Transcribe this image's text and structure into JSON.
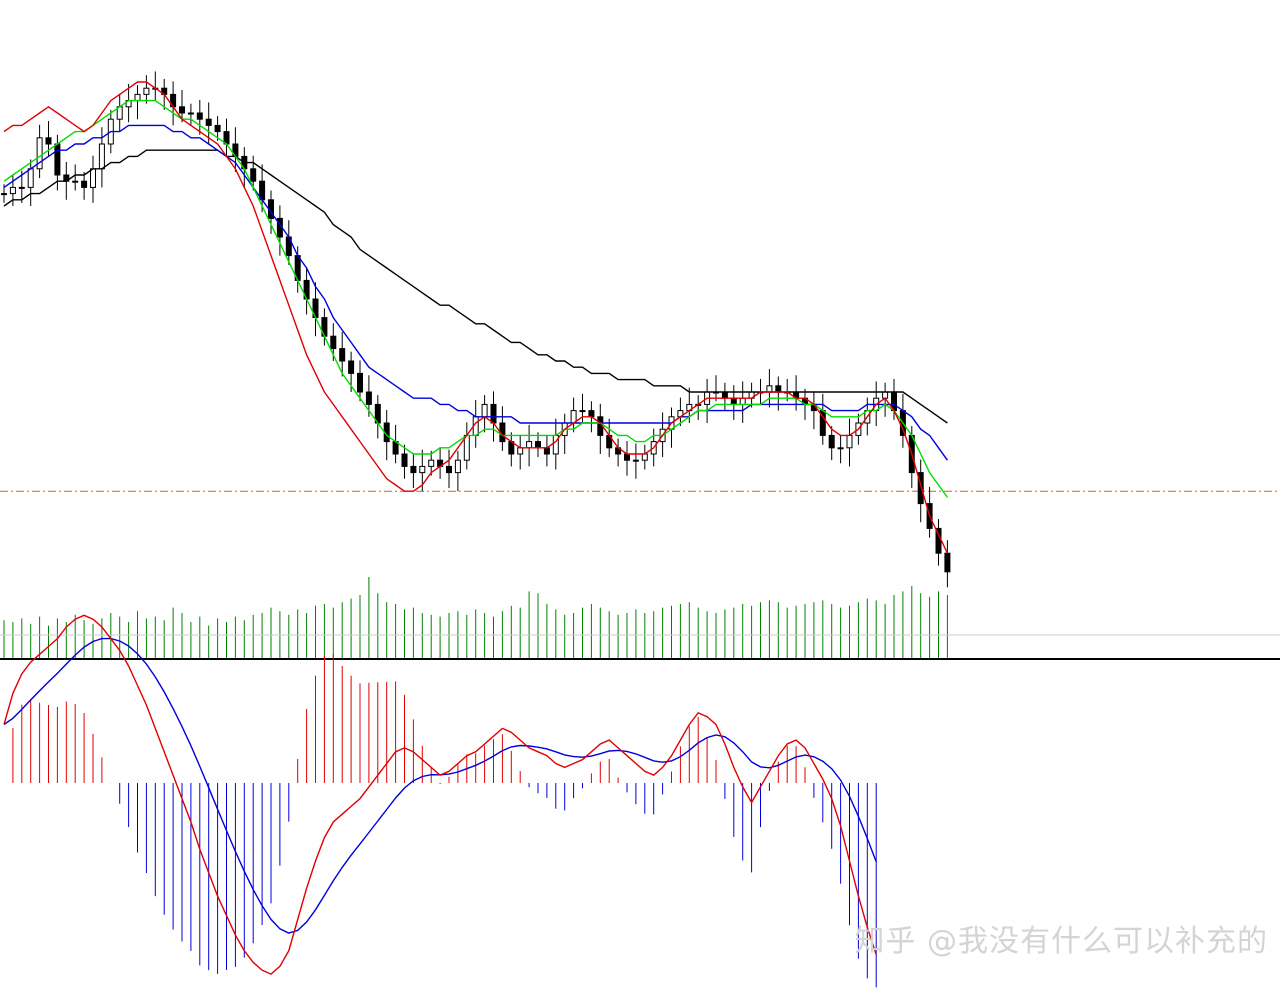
{
  "watermark": {
    "text": "知乎 @我没有什么可以补充的"
  },
  "colors": {
    "background": "#ffffff",
    "ma_fast": "#e00000",
    "ma_mid": "#00dd00",
    "ma_slow": "#0000dd",
    "ma_long": "#000000",
    "volume": "#008000",
    "support_line": "#e06010",
    "hist_up": "#e00000",
    "hist_down": "#0000dd",
    "macd_line": "#e00000",
    "signal_line": "#0000dd",
    "divider": "#000000"
  },
  "chart_data": [
    {
      "type": "candlestick",
      "grid": false,
      "ylim": [
        0,
        100
      ],
      "close": [
        72,
        73,
        73,
        76,
        81,
        80,
        75,
        74,
        74,
        73,
        76,
        80,
        84,
        86,
        87,
        88,
        89,
        89,
        88,
        86,
        85,
        85,
        84,
        83,
        82,
        80,
        78,
        76,
        74,
        71,
        68,
        65,
        62,
        58,
        55,
        52,
        49,
        47,
        45,
        43,
        40,
        38,
        35,
        32,
        30,
        28,
        27,
        28,
        29,
        28,
        27,
        29,
        33,
        36,
        38,
        35,
        32,
        30,
        31,
        32,
        31,
        30,
        33,
        35,
        37,
        37,
        36,
        33,
        31,
        30,
        29,
        29,
        30,
        32,
        34,
        36,
        37,
        38,
        38,
        40,
        40,
        39,
        38,
        39,
        40,
        40,
        41,
        40,
        40,
        39,
        38,
        37,
        33,
        31,
        31,
        33,
        35,
        37,
        39,
        40,
        37,
        33,
        27,
        22,
        18,
        14,
        11
      ],
      "ma_fast": [
        82,
        83,
        83,
        84,
        85,
        86,
        85,
        84,
        83,
        82,
        83,
        85,
        87,
        88,
        89,
        90,
        90,
        89,
        88,
        86,
        84,
        83,
        82,
        81,
        80,
        78,
        76,
        73,
        70,
        66,
        62,
        58,
        54,
        50,
        46,
        43,
        40,
        38,
        36,
        34,
        32,
        30,
        28,
        26,
        25,
        24,
        24,
        25,
        27,
        28,
        29,
        31,
        33,
        35,
        36,
        35,
        33,
        32,
        31,
        31,
        31,
        31,
        32,
        34,
        35,
        36,
        36,
        35,
        33,
        31,
        30,
        30,
        30,
        31,
        33,
        35,
        36,
        37,
        38,
        39,
        39,
        39,
        39,
        39,
        39,
        40,
        40,
        40,
        40,
        39,
        39,
        38,
        36,
        34,
        33,
        33,
        34,
        36,
        38,
        39,
        37,
        34,
        30,
        25,
        20,
        17,
        14
      ],
      "ma_mid": [
        74,
        75,
        76,
        77,
        78,
        79,
        80,
        81,
        82,
        82,
        83,
        84,
        85,
        86,
        87,
        87,
        87,
        87,
        86,
        85,
        84,
        84,
        83,
        82,
        81,
        80,
        78,
        76,
        73,
        70,
        67,
        64,
        61,
        58,
        55,
        52,
        49,
        46,
        43,
        41,
        39,
        37,
        35,
        33,
        32,
        31,
        30,
        30,
        30,
        31,
        31,
        32,
        33,
        33,
        34,
        34,
        33,
        33,
        33,
        33,
        33,
        33,
        33,
        34,
        34,
        35,
        35,
        35,
        34,
        33,
        33,
        32,
        32,
        33,
        33,
        34,
        35,
        36,
        37,
        37,
        38,
        38,
        38,
        38,
        38,
        38,
        39,
        39,
        39,
        39,
        38,
        38,
        37,
        36,
        36,
        36,
        36,
        37,
        37,
        38,
        37,
        35,
        33,
        30,
        27,
        25,
        23
      ],
      "ma_slow": [
        73,
        74,
        75,
        76,
        77,
        78,
        79,
        79,
        80,
        80,
        81,
        81,
        82,
        82,
        83,
        83,
        83,
        83,
        83,
        82,
        82,
        81,
        81,
        80,
        79,
        78,
        77,
        75,
        73,
        71,
        69,
        67,
        65,
        62,
        60,
        57,
        55,
        52,
        50,
        48,
        46,
        44,
        43,
        42,
        41,
        40,
        39,
        39,
        39,
        38,
        38,
        37,
        37,
        36,
        36,
        36,
        36,
        36,
        35,
        35,
        35,
        35,
        35,
        35,
        35,
        35,
        35,
        35,
        35,
        35,
        35,
        35,
        35,
        35,
        35,
        35,
        36,
        36,
        37,
        37,
        37,
        37,
        37,
        37,
        38,
        38,
        38,
        38,
        38,
        38,
        38,
        38,
        38,
        37,
        37,
        37,
        37,
        38,
        38,
        38,
        38,
        37,
        36,
        34,
        33,
        31,
        29
      ],
      "ma_long": [
        70,
        71,
        71,
        72,
        72,
        73,
        74,
        74,
        75,
        75,
        76,
        76,
        77,
        77,
        78,
        78,
        79,
        79,
        79,
        79,
        79,
        79,
        79,
        79,
        79,
        78,
        78,
        77,
        77,
        76,
        75,
        74,
        73,
        72,
        71,
        70,
        69,
        67,
        66,
        65,
        63,
        62,
        61,
        60,
        59,
        58,
        57,
        56,
        55,
        54,
        54,
        53,
        52,
        51,
        51,
        50,
        49,
        48,
        48,
        47,
        46,
        46,
        45,
        45,
        44,
        44,
        43,
        43,
        43,
        42,
        42,
        42,
        42,
        41,
        41,
        41,
        41,
        40,
        40,
        40,
        40,
        40,
        40,
        40,
        40,
        40,
        40,
        40,
        40,
        40,
        40,
        40,
        40,
        40,
        40,
        40,
        40,
        40,
        40,
        40,
        40,
        40,
        39,
        38,
        37,
        36,
        35
      ],
      "support_level": 24,
      "volume": [
        42,
        40,
        44,
        38,
        46,
        36,
        44,
        40,
        48,
        42,
        38,
        44,
        50,
        46,
        40,
        52,
        44,
        46,
        42,
        56,
        50,
        40,
        46,
        36,
        44,
        40,
        46,
        42,
        48,
        50,
        56,
        52,
        48,
        54,
        50,
        58,
        60,
        56,
        62,
        66,
        70,
        90,
        72,
        62,
        60,
        54,
        56,
        50,
        48,
        46,
        50,
        52,
        48,
        54,
        50,
        46,
        52,
        58,
        56,
        74,
        72,
        60,
        54,
        48,
        50,
        56,
        60,
        56,
        52,
        48,
        50,
        54,
        50,
        52,
        56,
        58,
        60,
        62,
        56,
        52,
        50,
        54,
        56,
        60,
        58,
        62,
        64,
        62,
        56,
        58,
        60,
        62,
        64,
        60,
        56,
        58,
        62,
        66,
        64,
        60,
        70,
        74,
        80,
        72,
        68,
        74,
        70
      ]
    },
    {
      "type": "macd",
      "grid": false,
      "ylim": [
        -100,
        100
      ],
      "macd": [
        30,
        46,
        56,
        62,
        66,
        70,
        74,
        80,
        84,
        86,
        84,
        80,
        74,
        68,
        60,
        50,
        40,
        28,
        16,
        4,
        -8,
        -20,
        -34,
        -46,
        -58,
        -68,
        -78,
        -86,
        -92,
        -96,
        -98,
        -94,
        -86,
        -70,
        -54,
        -40,
        -28,
        -20,
        -16,
        -12,
        -8,
        -2,
        4,
        10,
        16,
        18,
        16,
        12,
        8,
        4,
        6,
        10,
        14,
        16,
        20,
        24,
        28,
        26,
        22,
        18,
        16,
        14,
        10,
        8,
        10,
        12,
        16,
        20,
        22,
        18,
        14,
        10,
        6,
        4,
        8,
        14,
        22,
        30,
        36,
        34,
        30,
        20,
        8,
        -2,
        -10,
        -2,
        6,
        14,
        20,
        22,
        18,
        10,
        2,
        -8,
        -22,
        -40,
        -58,
        -74,
        -88
      ]
    }
  ]
}
